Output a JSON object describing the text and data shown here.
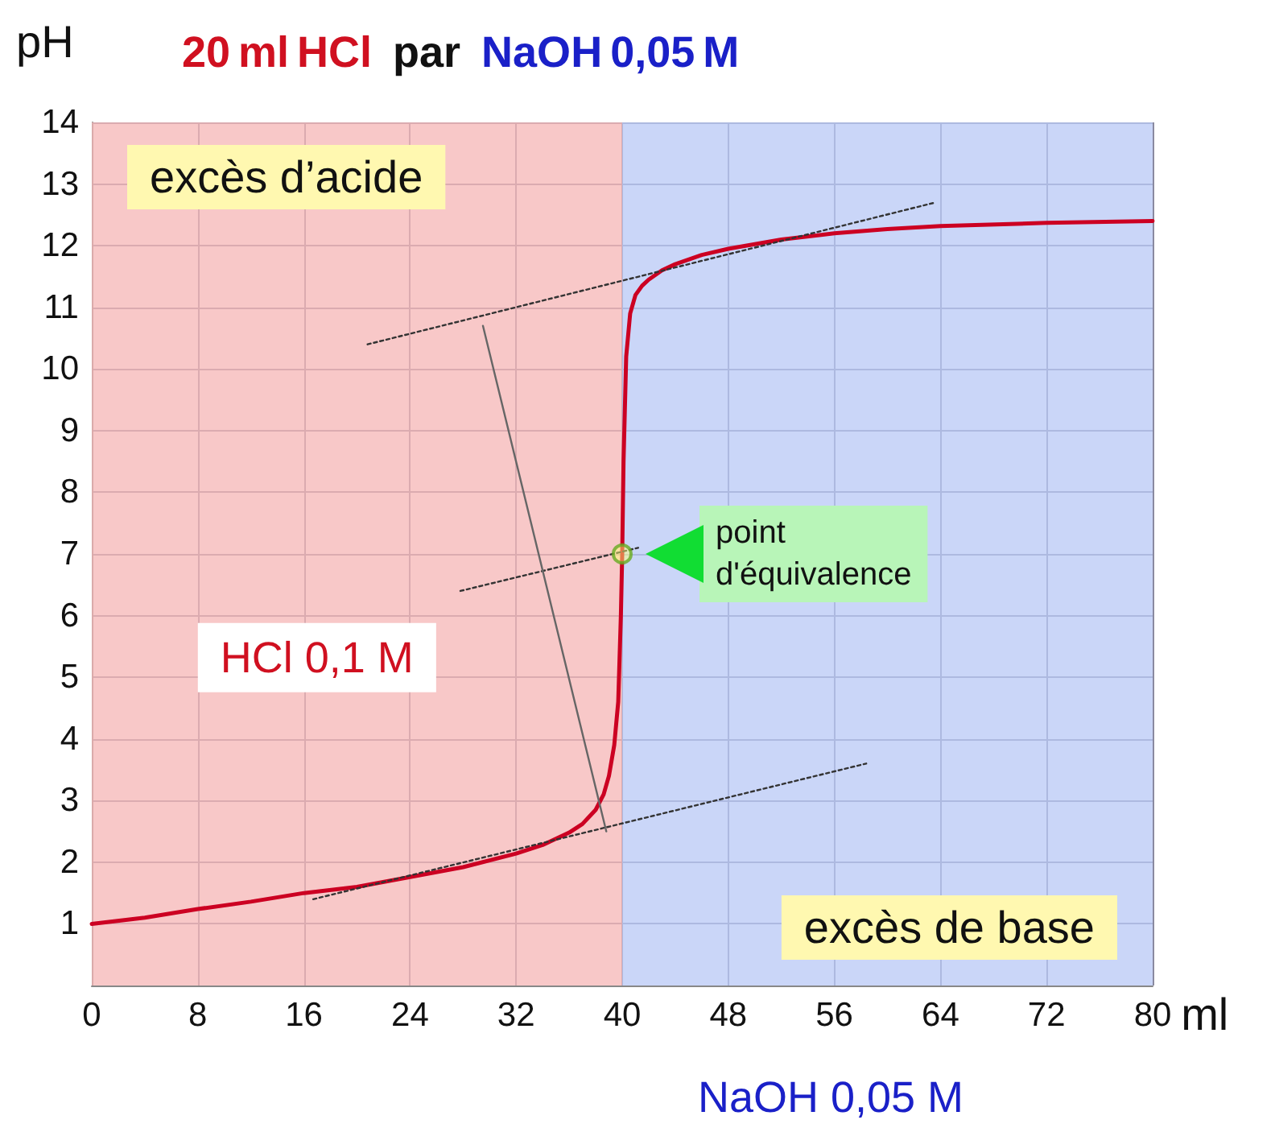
{
  "chart_data": {
    "type": "line",
    "title": "20 ml HCl par NaOH 0,05 M",
    "xlabel": "ml",
    "ylabel": "pH",
    "xlim": [
      0,
      80
    ],
    "xticks": [
      0,
      8,
      16,
      24,
      32,
      40,
      48,
      56,
      64,
      72,
      80
    ],
    "ylim": [
      0,
      14
    ],
    "yticks": [
      {
        "value": 0,
        "label": null
      },
      1,
      2,
      3,
      4,
      5,
      6,
      7,
      8,
      9,
      10,
      11,
      12,
      13,
      14
    ],
    "grid": true,
    "marker": "none",
    "bands": [
      {
        "axis": "x",
        "from": 0,
        "to": 40,
        "label": "excès d’acide",
        "color": "#f5b5b5"
      },
      {
        "axis": "x",
        "from": 40,
        "to": 80,
        "label": "excès de base",
        "color": "#b8c8f5"
      }
    ],
    "series": [
      {
        "color": "#cc0022",
        "x": [
          0,
          4,
          8,
          12,
          16,
          20,
          24,
          28,
          32,
          34,
          36,
          37,
          38,
          38.6,
          39,
          39.4,
          39.7,
          39.9,
          40,
          40.1,
          40.3,
          40.6,
          41,
          41.5,
          42,
          43,
          44,
          46,
          48,
          52,
          56,
          60,
          64,
          72,
          80
        ],
        "values": [
          1,
          1.1,
          1.24,
          1.36,
          1.5,
          1.6,
          1.76,
          1.92,
          2.14,
          2.28,
          2.48,
          2.62,
          2.85,
          3.1,
          3.4,
          3.9,
          4.6,
          6,
          7,
          8.5,
          10.2,
          10.9,
          11.2,
          11.35,
          11.45,
          11.6,
          11.7,
          11.85,
          11.95,
          12.1,
          12.2,
          12.27,
          12.32,
          12.37,
          12.4
        ]
      },
      {
        "color": "#333333",
        "line_style": "dotted",
        "x": [
          20.8,
          63.6
        ],
        "values": [
          10.4,
          12.7
        ]
      },
      {
        "color": "#333333",
        "line_style": "dotted",
        "x": [
          27.8,
          41.2
        ],
        "values": [
          6.4,
          7.1
        ]
      },
      {
        "color": "#333333",
        "line_style": "dotted",
        "x": [
          16.7,
          58.4
        ],
        "values": [
          1.4,
          3.6
        ]
      },
      {
        "color": "#666666",
        "line_style": "solid",
        "x": [
          29.5,
          38.8
        ],
        "values": [
          10.7,
          2.5
        ]
      },
      {
        "type": "scatter",
        "marker": "circle",
        "color": "#66aa22",
        "x": [
          40
        ],
        "values": [
          7
        ]
      }
    ],
    "annotations": [
      {
        "text": "point d'équivalence",
        "x": 40,
        "y": 7
      },
      "HCl 0,1 M",
      "NaOH 0,05 M"
    ]
  }
}
